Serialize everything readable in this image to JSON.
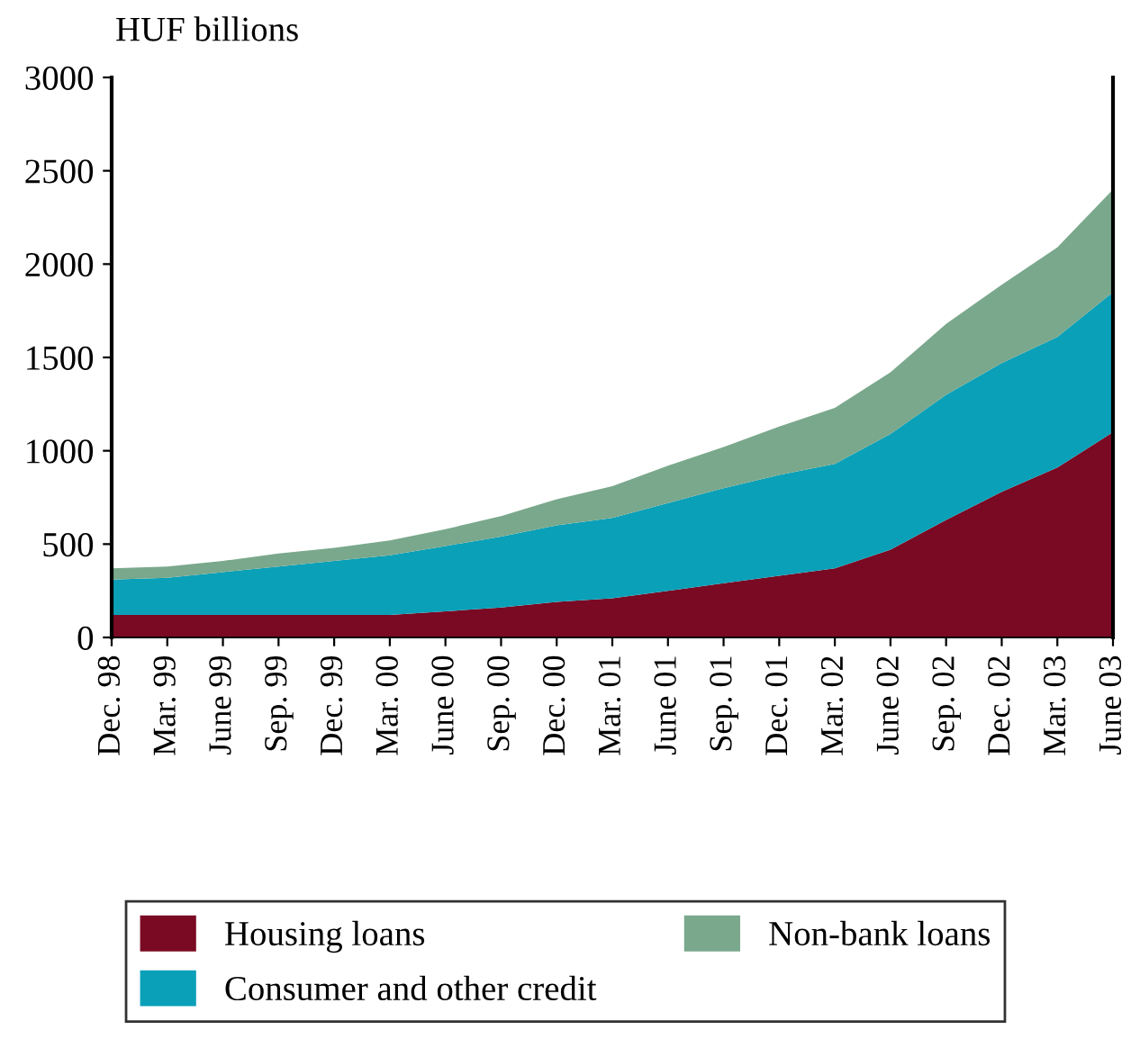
{
  "chart_data": {
    "type": "area",
    "stacked": true,
    "ylabel": "HUF billions",
    "categories": [
      "Dec. 98",
      "Mar. 99",
      "June 99",
      "Sep. 99",
      "Dec. 99",
      "Mar. 00",
      "June 00",
      "Sep. 00",
      "Dec. 00",
      "Mar. 01",
      "June 01",
      "Sep. 01",
      "Dec. 01",
      "Mar. 02",
      "June 02",
      "Sep. 02",
      "Dec. 02",
      "Mar. 03",
      "June 03"
    ],
    "series": [
      {
        "name": "Housing loans",
        "color": "#7a0a23",
        "values": [
          120,
          120,
          120,
          120,
          120,
          120,
          140,
          160,
          190,
          210,
          250,
          290,
          330,
          370,
          470,
          630,
          780,
          910,
          1100
        ]
      },
      {
        "name": "Consumer and other credit",
        "color": "#0aa0b8",
        "values": [
          190,
          200,
          230,
          260,
          290,
          320,
          350,
          380,
          410,
          430,
          470,
          510,
          540,
          560,
          620,
          670,
          690,
          700,
          750
        ]
      },
      {
        "name": "Non-bank loans",
        "color": "#7aa88c",
        "values": [
          60,
          60,
          60,
          70,
          70,
          80,
          90,
          110,
          140,
          170,
          200,
          220,
          260,
          300,
          330,
          380,
          420,
          480,
          550
        ]
      }
    ],
    "ylim": [
      0,
      3000
    ],
    "yticks": [
      0,
      500,
      1000,
      1500,
      2000,
      2500,
      3000
    ],
    "grid": false,
    "legend": "bottom"
  }
}
